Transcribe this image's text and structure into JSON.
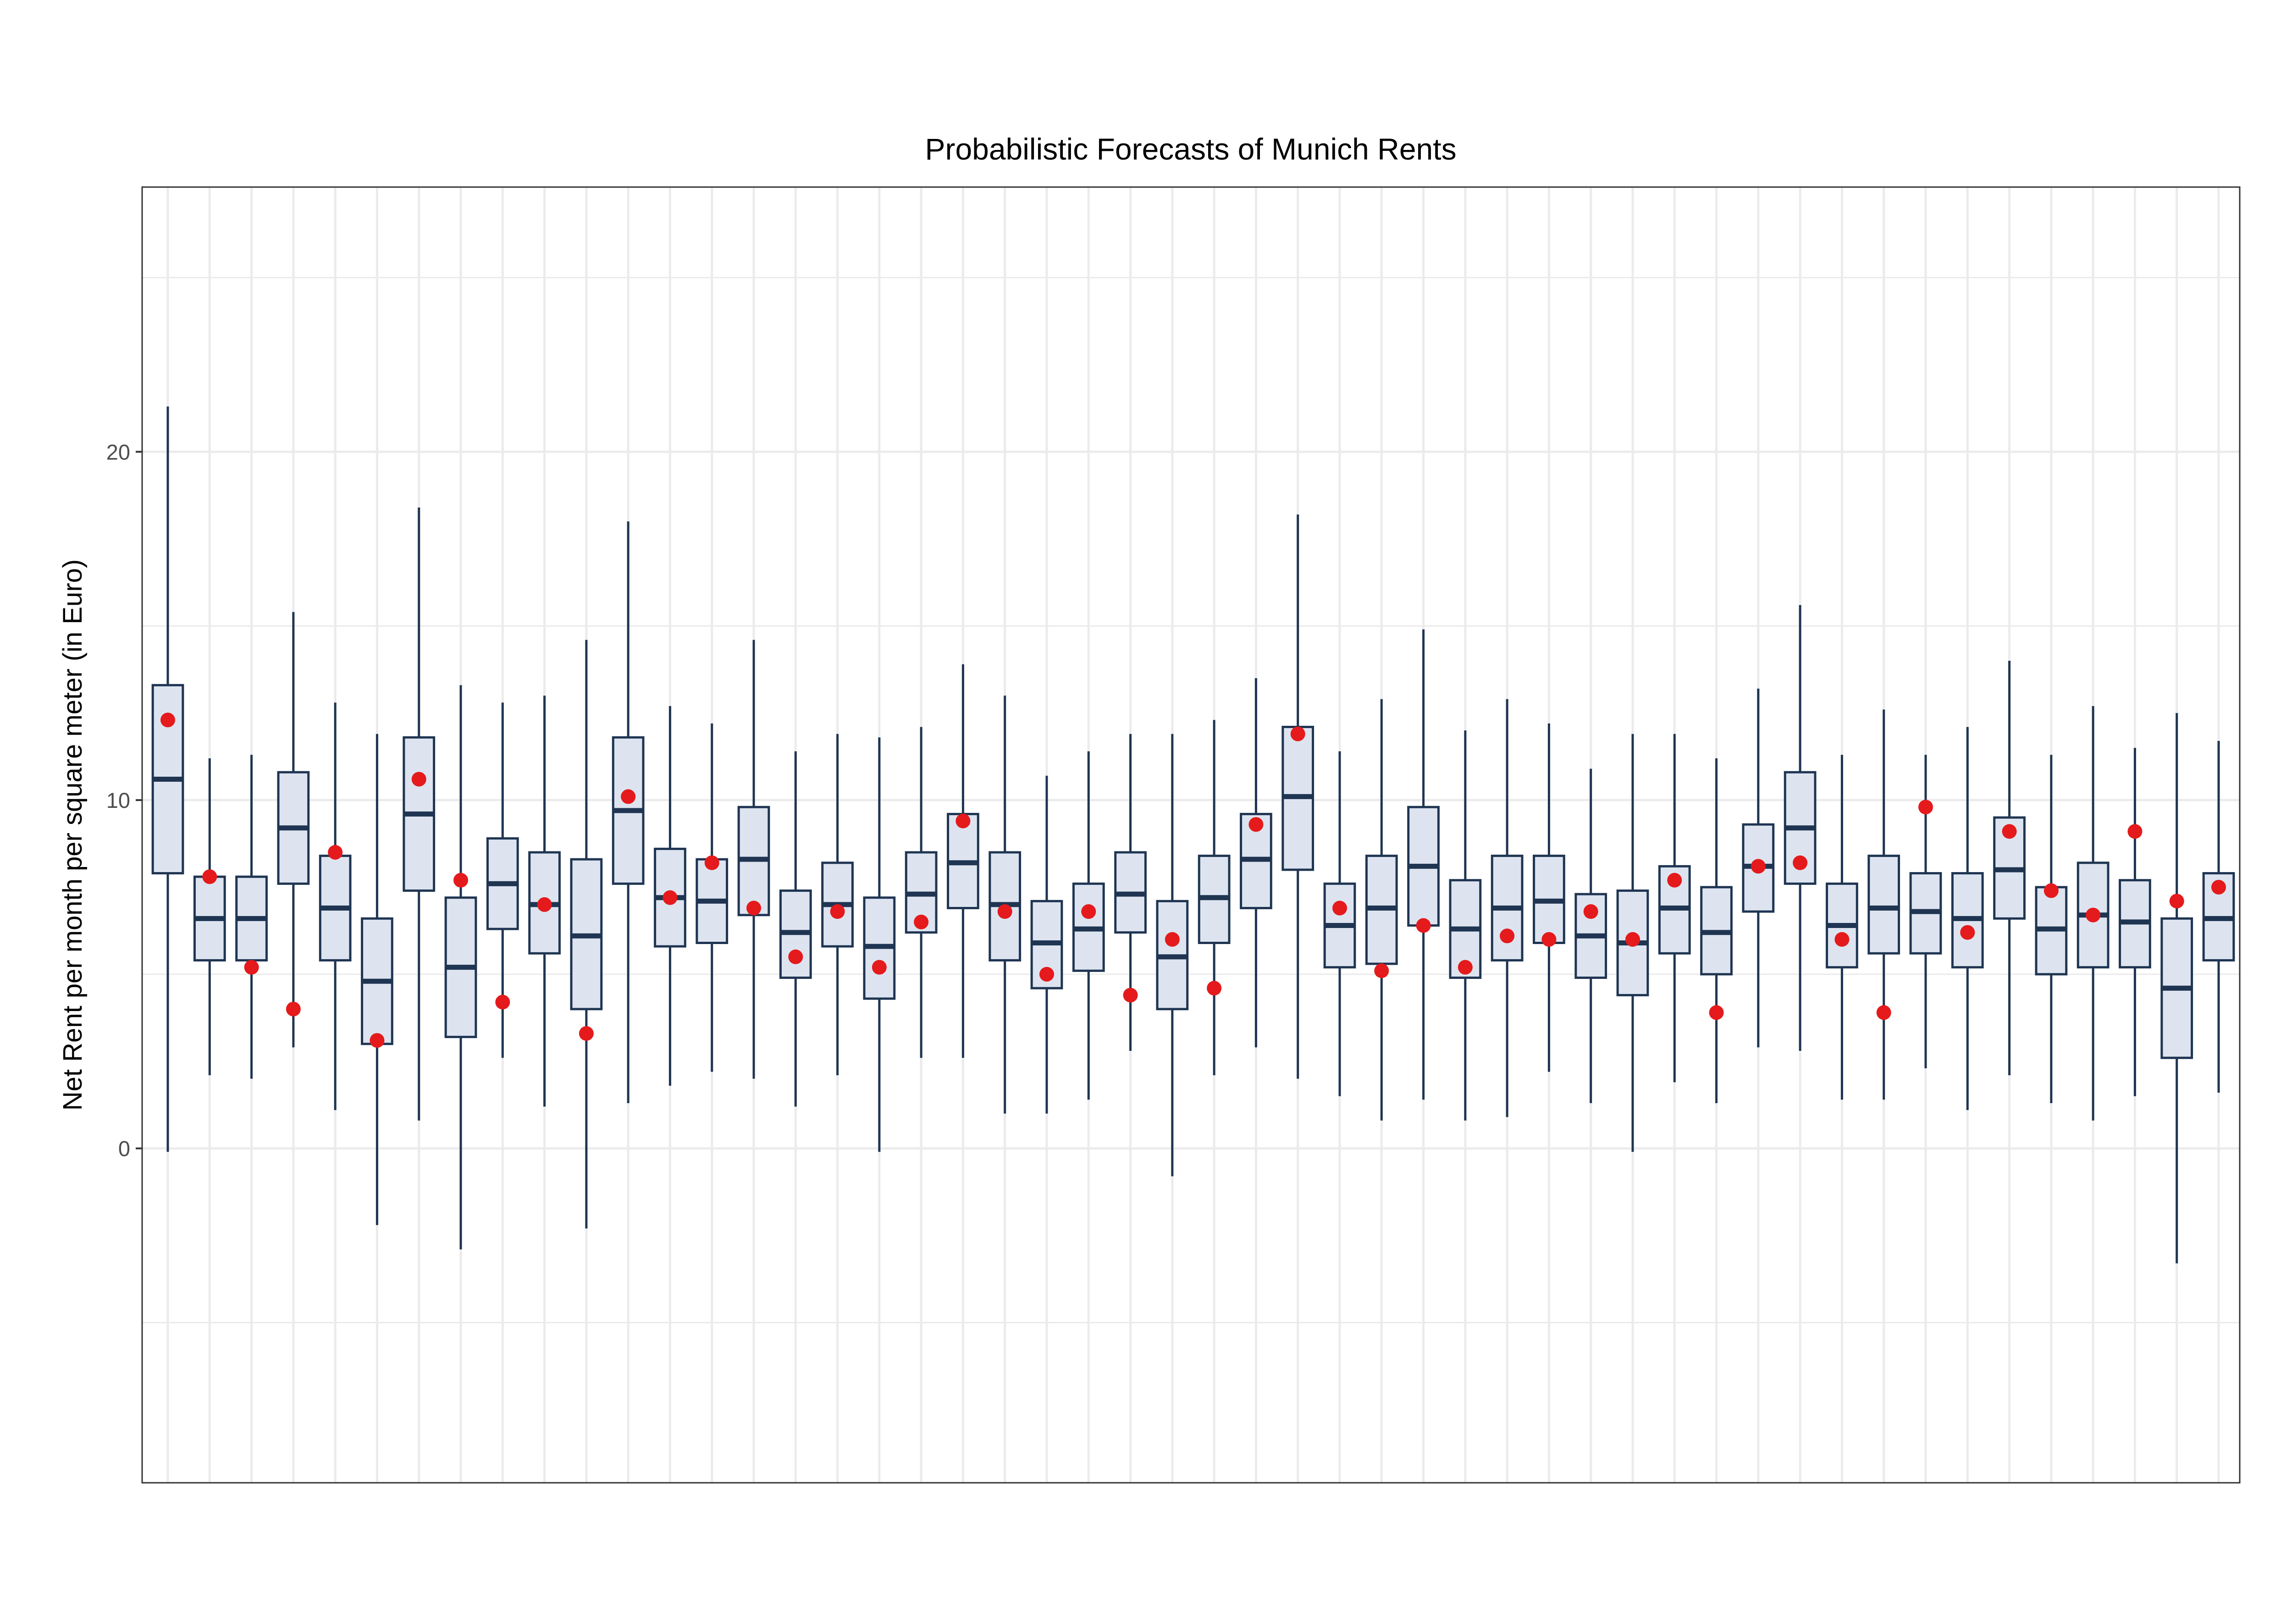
{
  "chart_data": {
    "type": "boxplot",
    "title": "Probabilistic Forecasts of Munich Rents",
    "xlabel": "",
    "ylabel": "Net Rent per month per square meter (in Euro)",
    "ylim": [
      -9.6,
      27.6
    ],
    "yticks": [
      0,
      10,
      20
    ],
    "ytick_labels": [
      "0",
      "10",
      "20"
    ],
    "grid": true,
    "legend": "none",
    "colors": {
      "box_fill": "#dde4f0",
      "box_stroke": "#1f3552",
      "observed_point": "#e41a1c",
      "grid": "#ebebeb",
      "panel_border": "#333333"
    },
    "series": [
      {
        "name": "forecast",
        "boxes": [
          {
            "whisker_low": -0.1,
            "q1": 7.9,
            "median": 10.6,
            "q3": 13.3,
            "whisker_high": 21.3
          },
          {
            "whisker_low": 2.1,
            "q1": 5.4,
            "median": 6.6,
            "q3": 7.8,
            "whisker_high": 11.2
          },
          {
            "whisker_low": 2.0,
            "q1": 5.4,
            "median": 6.6,
            "q3": 7.8,
            "whisker_high": 11.3
          },
          {
            "whisker_low": 2.9,
            "q1": 7.6,
            "median": 9.2,
            "q3": 10.8,
            "whisker_high": 15.4
          },
          {
            "whisker_low": 1.1,
            "q1": 5.4,
            "median": 6.9,
            "q3": 8.4,
            "whisker_high": 12.8
          },
          {
            "whisker_low": -2.2,
            "q1": 3.0,
            "median": 4.8,
            "q3": 6.6,
            "whisker_high": 11.9
          },
          {
            "whisker_low": 0.8,
            "q1": 7.4,
            "median": 9.6,
            "q3": 11.8,
            "whisker_high": 18.4
          },
          {
            "whisker_low": -2.9,
            "q1": 3.2,
            "median": 5.2,
            "q3": 7.2,
            "whisker_high": 13.3
          },
          {
            "whisker_low": 2.6,
            "q1": 6.3,
            "median": 7.6,
            "q3": 8.9,
            "whisker_high": 12.8
          },
          {
            "whisker_low": 1.2,
            "q1": 5.6,
            "median": 7.0,
            "q3": 8.5,
            "whisker_high": 13.0
          },
          {
            "whisker_low": -2.3,
            "q1": 4.0,
            "median": 6.1,
            "q3": 8.3,
            "whisker_high": 14.6
          },
          {
            "whisker_low": 1.3,
            "q1": 7.6,
            "median": 9.7,
            "q3": 11.8,
            "whisker_high": 18.0
          },
          {
            "whisker_low": 1.8,
            "q1": 5.8,
            "median": 7.2,
            "q3": 8.6,
            "whisker_high": 12.7
          },
          {
            "whisker_low": 2.2,
            "q1": 5.9,
            "median": 7.1,
            "q3": 8.3,
            "whisker_high": 12.2
          },
          {
            "whisker_low": 2.0,
            "q1": 6.7,
            "median": 8.3,
            "q3": 9.8,
            "whisker_high": 14.6
          },
          {
            "whisker_low": 1.2,
            "q1": 4.9,
            "median": 6.2,
            "q3": 7.4,
            "whisker_high": 11.4
          },
          {
            "whisker_low": 2.1,
            "q1": 5.8,
            "median": 7.0,
            "q3": 8.2,
            "whisker_high": 11.9
          },
          {
            "whisker_low": -0.1,
            "q1": 4.3,
            "median": 5.8,
            "q3": 7.2,
            "whisker_high": 11.8
          },
          {
            "whisker_low": 2.6,
            "q1": 6.2,
            "median": 7.3,
            "q3": 8.5,
            "whisker_high": 12.1
          },
          {
            "whisker_low": 2.6,
            "q1": 6.9,
            "median": 8.2,
            "q3": 9.6,
            "whisker_high": 13.9
          },
          {
            "whisker_low": 1.0,
            "q1": 5.4,
            "median": 7.0,
            "q3": 8.5,
            "whisker_high": 13.0
          },
          {
            "whisker_low": 1.0,
            "q1": 4.6,
            "median": 5.9,
            "q3": 7.1,
            "whisker_high": 10.7
          },
          {
            "whisker_low": 1.4,
            "q1": 5.1,
            "median": 6.3,
            "q3": 7.6,
            "whisker_high": 11.4
          },
          {
            "whisker_low": 2.8,
            "q1": 6.2,
            "median": 7.3,
            "q3": 8.5,
            "whisker_high": 11.9
          },
          {
            "whisker_low": -0.8,
            "q1": 4.0,
            "median": 5.5,
            "q3": 7.1,
            "whisker_high": 11.9
          },
          {
            "whisker_low": 2.1,
            "q1": 5.9,
            "median": 7.2,
            "q3": 8.4,
            "whisker_high": 12.3
          },
          {
            "whisker_low": 2.9,
            "q1": 6.9,
            "median": 8.3,
            "q3": 9.6,
            "whisker_high": 13.5
          },
          {
            "whisker_low": 2.0,
            "q1": 8.0,
            "median": 10.1,
            "q3": 12.1,
            "whisker_high": 18.2
          },
          {
            "whisker_low": 1.5,
            "q1": 5.2,
            "median": 6.4,
            "q3": 7.6,
            "whisker_high": 11.4
          },
          {
            "whisker_low": 0.8,
            "q1": 5.3,
            "median": 6.9,
            "q3": 8.4,
            "whisker_high": 12.9
          },
          {
            "whisker_low": 1.4,
            "q1": 6.4,
            "median": 8.1,
            "q3": 9.8,
            "whisker_high": 14.9
          },
          {
            "whisker_low": 0.8,
            "q1": 4.9,
            "median": 6.3,
            "q3": 7.7,
            "whisker_high": 12.0
          },
          {
            "whisker_low": 0.9,
            "q1": 5.4,
            "median": 6.9,
            "q3": 8.4,
            "whisker_high": 12.9
          },
          {
            "whisker_low": 2.2,
            "q1": 5.9,
            "median": 7.1,
            "q3": 8.4,
            "whisker_high": 12.2
          },
          {
            "whisker_low": 1.3,
            "q1": 4.9,
            "median": 6.1,
            "q3": 7.3,
            "whisker_high": 10.9
          },
          {
            "whisker_low": -0.1,
            "q1": 4.4,
            "median": 5.9,
            "q3": 7.4,
            "whisker_high": 11.9
          },
          {
            "whisker_low": 1.9,
            "q1": 5.6,
            "median": 6.9,
            "q3": 8.1,
            "whisker_high": 11.9
          },
          {
            "whisker_low": 1.3,
            "q1": 5.0,
            "median": 6.2,
            "q3": 7.5,
            "whisker_high": 11.2
          },
          {
            "whisker_low": 2.9,
            "q1": 6.8,
            "median": 8.1,
            "q3": 9.3,
            "whisker_high": 13.2
          },
          {
            "whisker_low": 2.8,
            "q1": 7.6,
            "median": 9.2,
            "q3": 10.8,
            "whisker_high": 15.6
          },
          {
            "whisker_low": 1.4,
            "q1": 5.2,
            "median": 6.4,
            "q3": 7.6,
            "whisker_high": 11.3
          },
          {
            "whisker_low": 1.4,
            "q1": 5.6,
            "median": 6.9,
            "q3": 8.4,
            "whisker_high": 12.6
          },
          {
            "whisker_low": 2.3,
            "q1": 5.6,
            "median": 6.8,
            "q3": 7.9,
            "whisker_high": 11.3
          },
          {
            "whisker_low": 1.1,
            "q1": 5.2,
            "median": 6.6,
            "q3": 7.9,
            "whisker_high": 12.1
          },
          {
            "whisker_low": 2.1,
            "q1": 6.6,
            "median": 8.0,
            "q3": 9.5,
            "whisker_high": 14.0
          },
          {
            "whisker_low": 1.3,
            "q1": 5.0,
            "median": 6.3,
            "q3": 7.5,
            "whisker_high": 11.3
          },
          {
            "whisker_low": 0.8,
            "q1": 5.2,
            "median": 6.7,
            "q3": 8.2,
            "whisker_high": 12.7
          },
          {
            "whisker_low": 1.5,
            "q1": 5.2,
            "median": 6.5,
            "q3": 7.7,
            "whisker_high": 11.5
          },
          {
            "whisker_low": -3.3,
            "q1": 2.6,
            "median": 4.6,
            "q3": 6.6,
            "whisker_high": 12.5
          },
          {
            "whisker_low": 1.6,
            "q1": 5.4,
            "median": 6.6,
            "q3": 7.9,
            "whisker_high": 11.7
          }
        ]
      },
      {
        "name": "observed",
        "values": [
          12.3,
          7.8,
          5.2,
          4.0,
          8.5,
          3.1,
          10.6,
          7.7,
          4.2,
          7.0,
          3.3,
          10.1,
          7.2,
          8.2,
          6.9,
          5.5,
          6.8,
          5.2,
          6.5,
          9.4,
          6.8,
          5.0,
          6.8,
          4.4,
          6.0,
          4.6,
          9.3,
          11.9,
          6.9,
          5.1,
          6.4,
          5.2,
          6.1,
          6.0,
          6.8,
          6.0,
          7.7,
          3.9,
          8.1,
          8.2,
          6.0,
          3.9,
          9.8,
          6.2,
          9.1,
          7.4,
          6.7,
          9.1,
          7.1,
          7.5
        ]
      }
    ]
  }
}
